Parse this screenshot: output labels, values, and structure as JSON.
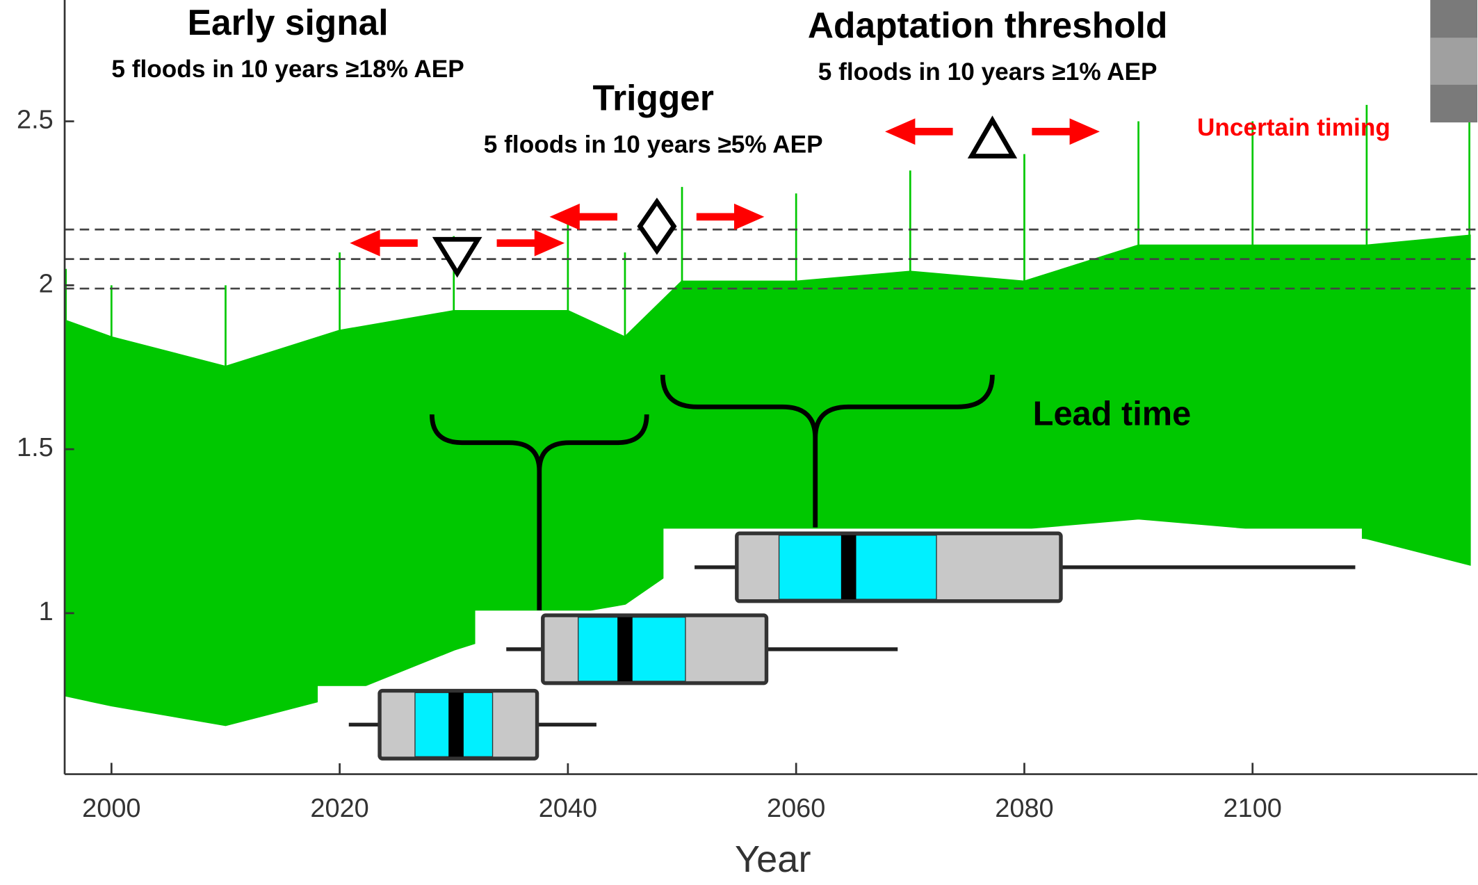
{
  "chart_data": {
    "type": "area",
    "xlabel": "Year",
    "xlim": [
      1995.9,
      2119.7
    ],
    "xticks": [
      2000,
      2020,
      2040,
      2060,
      2080,
      2100
    ],
    "ylim": [
      0.509,
      2.87
    ],
    "yticks": [
      1,
      1.5,
      2,
      2.5
    ],
    "color": "#00c800",
    "x": [
      1996,
      2000,
      2010,
      2020,
      2030,
      2040,
      2045,
      2050,
      2060,
      2070,
      2080,
      2090,
      2100,
      2110,
      2119
    ],
    "upper": [
      1.89,
      1.84,
      1.75,
      1.86,
      1.92,
      1.92,
      1.84,
      2.01,
      2.01,
      2.04,
      2.01,
      2.12,
      2.12,
      2.12,
      2.15
    ],
    "lower": [
      0.75,
      0.72,
      0.66,
      0.75,
      0.89,
      1.0,
      1.03,
      1.15,
      1.17,
      1.15,
      1.26,
      1.29,
      1.26,
      1.23,
      1.15
    ],
    "peaks": [
      2.05,
      2.0,
      2.0,
      2.1,
      2.15,
      2.2,
      2.1,
      2.3,
      2.28,
      2.35,
      2.4,
      2.5,
      2.5,
      2.55,
      2.5
    ],
    "thresholds": [
      2.17,
      2.08,
      1.99
    ],
    "markers": [
      {
        "shape": "triangle-down",
        "x": 2030.3,
        "y": 2.1
      },
      {
        "shape": "diamond",
        "x": 2047.8,
        "y": 2.18
      },
      {
        "shape": "triangle-up",
        "x": 2077.2,
        "y": 2.44
      }
    ],
    "boxplots": [
      {
        "y": 0.66,
        "whislo": 2020.8,
        "q1": 2023.5,
        "inner_lo": 2026.6,
        "med": 2030.2,
        "inner_hi": 2033.4,
        "q3": 2037.3,
        "whishi": 2042.5
      },
      {
        "y": 0.89,
        "whislo": 2034.6,
        "q1": 2037.8,
        "inner_lo": 2040.9,
        "med": 2045.0,
        "inner_hi": 2050.3,
        "q3": 2057.4,
        "whishi": 2068.9
      },
      {
        "y": 1.14,
        "whislo": 2051.1,
        "q1": 2054.8,
        "inner_lo": 2058.5,
        "med": 2064.6,
        "inner_hi": 2072.3,
        "q3": 2083.2,
        "whishi": 2109.0
      }
    ],
    "annotations": {
      "early_title": "Early signal",
      "early_text": "5 floods in 10 years ≥18% AEP",
      "trigger_title": "Trigger",
      "trigger_text": "5 floods in 10 years ≥5% AEP",
      "threshold_title": "Adaptation threshold",
      "threshold_text": "5 floods in 10 years ≥1% AEP",
      "uncertain": "Uncertain timing",
      "lead": "Lead time"
    }
  }
}
